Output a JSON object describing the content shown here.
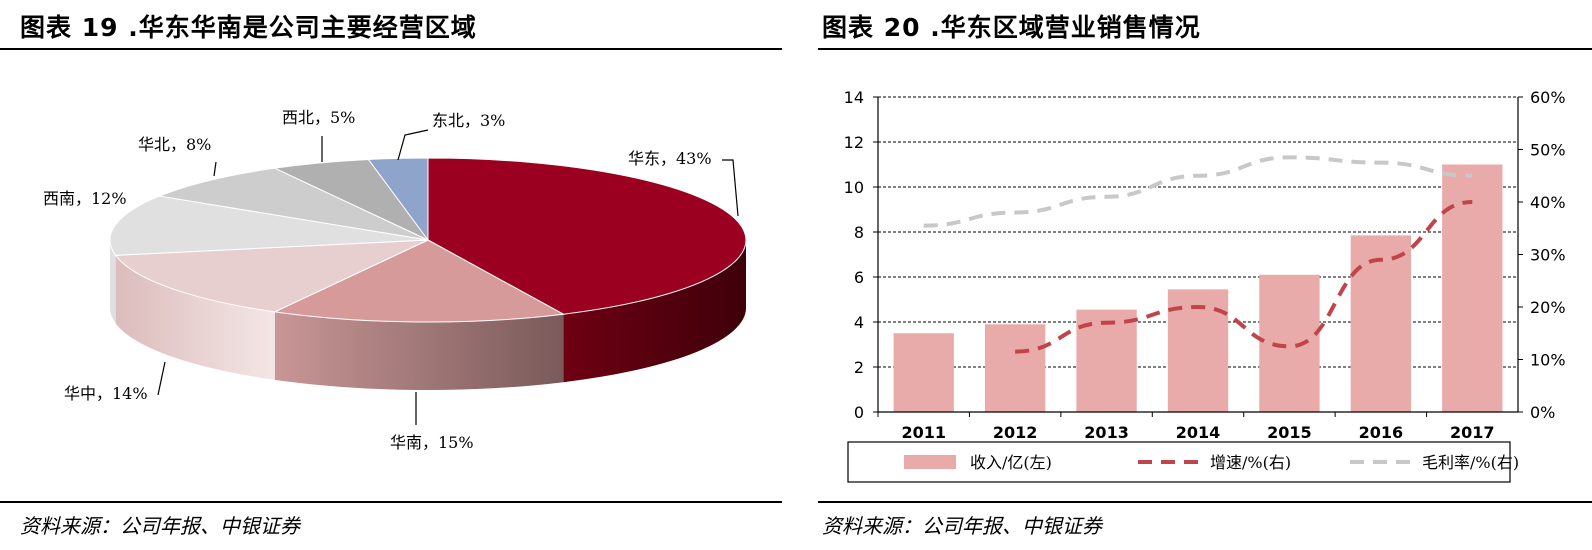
{
  "figures": [
    {
      "title": "图表 19 .华东华南是公司主要经营区域",
      "source": "资料来源：公司年报、中银证券"
    },
    {
      "title": "图表 20 .华东区域营业销售情况",
      "source": "资料来源：公司年报、中银证券"
    }
  ],
  "chart_data": [
    {
      "type": "pie",
      "title": "图表 19 .华东华南是公司主要经营区域",
      "slices": [
        {
          "label": "华东，43%",
          "name": "华东",
          "value": 43,
          "color": "#9b0020"
        },
        {
          "label": "华南，15%",
          "name": "华南",
          "value": 15,
          "color": "#d69a9a"
        },
        {
          "label": "华中，14%",
          "name": "华中",
          "value": 14,
          "color": "#e8cfcf"
        },
        {
          "label": "西南，12%",
          "name": "西南",
          "value": 12,
          "color": "#e0e0e0"
        },
        {
          "label": "华北，8%",
          "name": "华北",
          "value": 8,
          "color": "#cdcdcd"
        },
        {
          "label": "西北，5%",
          "name": "西北",
          "value": 5,
          "color": "#b0b0b0"
        },
        {
          "label": "东北，3%",
          "name": "东北",
          "value": 3,
          "color": "#8fa4cb"
        }
      ]
    },
    {
      "type": "bar",
      "title": "图表 20 .华东区域营业销售情况",
      "categories": [
        "2011",
        "2012",
        "2013",
        "2014",
        "2015",
        "2016",
        "2017"
      ],
      "y_left": {
        "min": 0,
        "max": 14,
        "ticks": [
          "0",
          "2",
          "4",
          "6",
          "8",
          "10",
          "12",
          "14"
        ]
      },
      "y_right": {
        "min": 0,
        "max": 60,
        "ticks": [
          "0%",
          "10%",
          "20%",
          "30%",
          "40%",
          "50%",
          "60%"
        ]
      },
      "grid": true,
      "legend_position": "bottom",
      "series": [
        {
          "name": "收入/亿(左)",
          "kind": "bar",
          "axis": "left",
          "color": "#e9aaaa",
          "values": [
            3.5,
            3.9,
            4.55,
            5.45,
            6.1,
            7.85,
            11.0
          ]
        },
        {
          "name": "增速/%(右)",
          "kind": "line",
          "axis": "right",
          "color": "#c0444a",
          "dashed": true,
          "values": [
            null,
            11.5,
            17,
            20,
            12.5,
            29,
            40
          ]
        },
        {
          "name": "毛利率/%(右)",
          "kind": "line",
          "axis": "right",
          "color": "#c8c8c8",
          "dashed": true,
          "values": [
            35.5,
            38,
            41,
            45,
            48.5,
            47.5,
            45
          ]
        }
      ]
    }
  ]
}
